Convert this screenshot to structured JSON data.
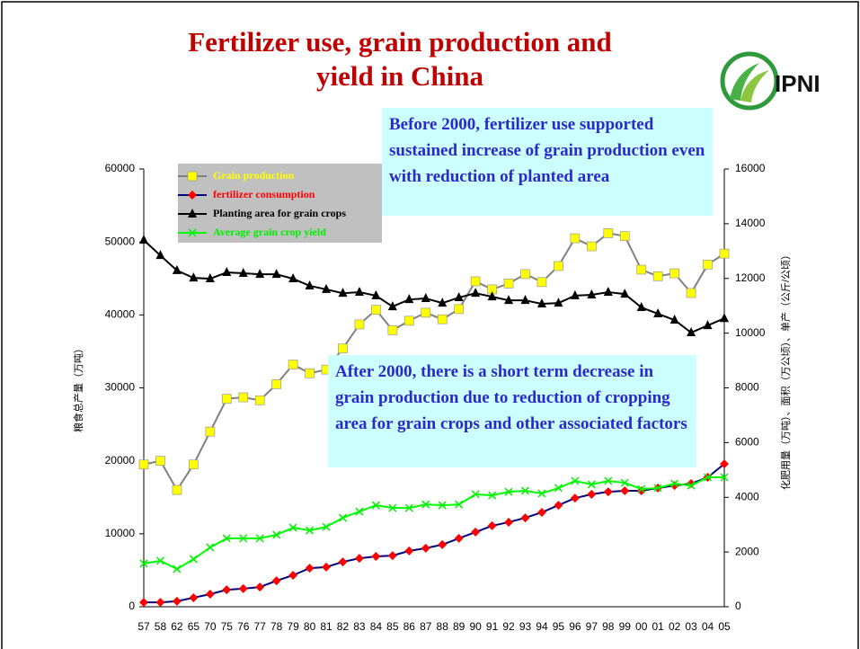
{
  "chart_data": {
    "type": "line",
    "title": "Fertilizer use, grain production and yield in China",
    "logo_text": "IPNI",
    "annotations": [
      "Before 2000, fertilizer use supported sustained increase of grain production even with reduction of planted area",
      "After 2000, there is a short term decrease in grain production due to reduction of cropping area for grain crops and other  associated factors"
    ],
    "ylabel": "粮食总产量（万吨）",
    "y2label": "化肥用量（万吨）、面积（万公顷）、单产（公斤/公顷）",
    "categories": [
      "57",
      "58",
      "62",
      "65",
      "70",
      "75",
      "76",
      "77",
      "78",
      "79",
      "80",
      "81",
      "82",
      "83",
      "84",
      "85",
      "86",
      "87",
      "88",
      "89",
      "90",
      "91",
      "92",
      "93",
      "94",
      "95",
      "96",
      "97",
      "98",
      "99",
      "00",
      "01",
      "02",
      "03",
      "04",
      "05"
    ],
    "series": [
      {
        "name": "Grain production",
        "color": "#808080",
        "marker_color": "#ffff00",
        "marker": "square",
        "axis": "y",
        "values": [
          19500,
          20000,
          16000,
          19500,
          24000,
          28500,
          28700,
          28300,
          30500,
          33200,
          32000,
          32500,
          35400,
          38700,
          40700,
          37900,
          39200,
          40300,
          39400,
          40800,
          44600,
          43500,
          44300,
          45600,
          44500,
          46700,
          50500,
          49400,
          51200,
          50800,
          46200,
          45300,
          45700,
          43000,
          46900,
          48400
        ]
      },
      {
        "name": "fertilizer consumption",
        "color": "#000080",
        "marker_color": "#ff0000",
        "marker": "diamond",
        "axis": "y2",
        "values": [
          160,
          160,
          200,
          330,
          460,
          620,
          660,
          720,
          950,
          1150,
          1410,
          1450,
          1640,
          1770,
          1840,
          1870,
          2040,
          2140,
          2270,
          2500,
          2730,
          2960,
          3090,
          3250,
          3450,
          3710,
          3970,
          4110,
          4200,
          4240,
          4240,
          4340,
          4430,
          4500,
          4730,
          5220
        ]
      },
      {
        "name": "Planting area for grain crops",
        "color": "#000000",
        "marker_color": "#000000",
        "marker": "triangle",
        "axis": "y2",
        "values": [
          13400,
          12840,
          12290,
          12020,
          11990,
          12220,
          12190,
          12150,
          12150,
          11990,
          11730,
          11600,
          11460,
          11500,
          11370,
          10970,
          11230,
          11270,
          11100,
          11300,
          11460,
          11330,
          11200,
          11200,
          11070,
          11100,
          11370,
          11400,
          11500,
          11430,
          10940,
          10710,
          10480,
          10020,
          10280,
          10540
        ]
      },
      {
        "name": "Average grain crop yield",
        "color": "#00ff00",
        "marker_color": "#00ee00",
        "marker": "x",
        "axis": "y2",
        "values": [
          1580,
          1680,
          1380,
          1740,
          2170,
          2500,
          2500,
          2500,
          2630,
          2890,
          2790,
          2920,
          3250,
          3480,
          3710,
          3610,
          3610,
          3740,
          3710,
          3740,
          4110,
          4070,
          4200,
          4240,
          4140,
          4340,
          4600,
          4470,
          4600,
          4530,
          4300,
          4340,
          4500,
          4430,
          4730,
          4730
        ]
      }
    ],
    "ylim": [
      0,
      60000
    ],
    "yticks": [
      0,
      10000,
      20000,
      30000,
      40000,
      50000,
      60000
    ],
    "y2lim": [
      0,
      16000
    ],
    "y2ticks": [
      0,
      2000,
      4000,
      6000,
      8000,
      10000,
      12000,
      14000,
      16000
    ],
    "legend": "upper left",
    "grid": false
  }
}
